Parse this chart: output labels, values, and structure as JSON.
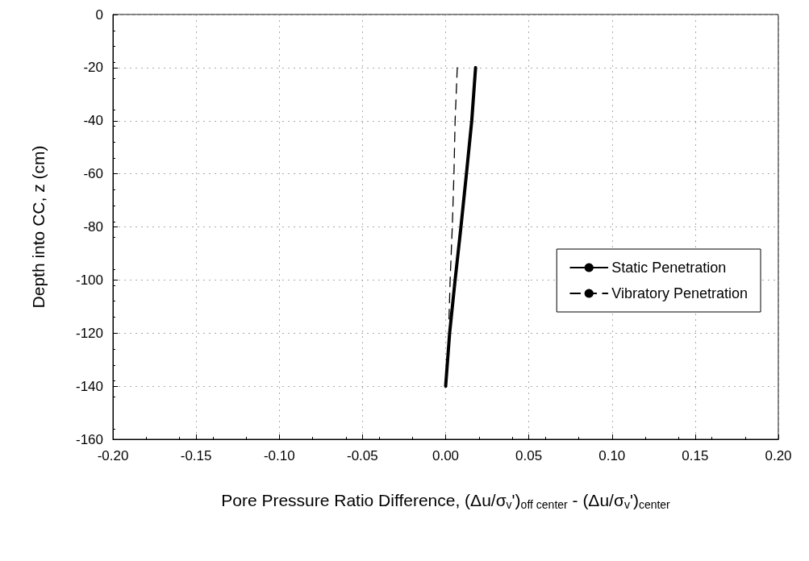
{
  "chart_data": {
    "type": "line",
    "xlabel": "Pore Pressure Ratio Difference, (Δu/σ$_{v}$')$_{off center}$ - (Δu/σ$_{v}$')$_{center}$",
    "ylabel": "Depth into CC, z (cm)",
    "xlim": [
      -0.2,
      0.2
    ],
    "xticks": [
      {
        "value": -0.2,
        "label": "-0.20"
      },
      {
        "value": -0.15,
        "label": "-0.15"
      },
      {
        "value": -0.1,
        "label": "-0.10"
      },
      {
        "value": -0.05,
        "label": "-0.05"
      },
      {
        "value": 0,
        "label": "0.00"
      },
      {
        "value": 0.05,
        "label": "0.05"
      },
      {
        "value": 0.1,
        "label": "0.10"
      },
      {
        "value": 0.15,
        "label": "0.15"
      },
      {
        "value": 0.2,
        "label": "0.20"
      }
    ],
    "ylim": [
      -160,
      0
    ],
    "yticks": [
      0,
      -20,
      -40,
      -60,
      -80,
      -100,
      -120,
      -140,
      -160
    ],
    "grid": true,
    "legend": "right",
    "series": [
      {
        "name": "Static Penetration",
        "color": "#000000",
        "line_style": "solid",
        "x": [
          0.018,
          0.0157,
          0.0125,
          0.0092,
          0.0057,
          0.0024,
          0
        ],
        "values": [
          -20,
          -40,
          -60,
          -80,
          -100,
          -120,
          -140
        ]
      },
      {
        "name": "Vibratory Penetration",
        "color": "#000000",
        "line_style": "dashed",
        "x": [
          0.007,
          0.0057,
          0.005,
          0.004,
          0.0027,
          0.002
        ],
        "values": [
          -20,
          -40,
          -60,
          -80,
          -100,
          -115
        ]
      }
    ]
  }
}
